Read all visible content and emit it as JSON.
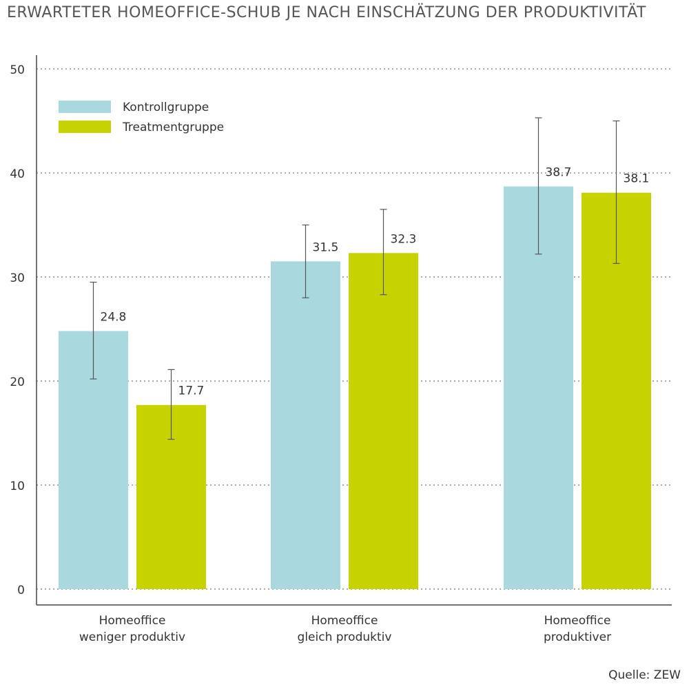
{
  "chart_data": {
    "type": "bar",
    "title": "ERWARTETER HOMEOFFICE-SCHUB JE NACH EINSCHÄTZUNG DER PRODUKTIVITÄT",
    "categories": [
      [
        "Homeoffice",
        "weniger produktiv"
      ],
      [
        "Homeoffice",
        "gleich produktiv"
      ],
      [
        "Homeoffice",
        "produktiver"
      ]
    ],
    "series": [
      {
        "name": "Kontrollgruppe",
        "color": "#a9d9de",
        "values": [
          24.8,
          31.5,
          38.7
        ],
        "labels": [
          "24.8",
          "31.5",
          "38.7"
        ],
        "error_low": [
          20.2,
          28.0,
          32.2
        ],
        "error_high": [
          29.5,
          35.0,
          45.3
        ]
      },
      {
        "name": "Treatmentgruppe",
        "color": "#c6d300",
        "values": [
          17.7,
          32.3,
          38.1
        ],
        "labels": [
          "17.7",
          "32.3",
          "38.1"
        ],
        "error_low": [
          14.4,
          28.3,
          31.3
        ],
        "error_high": [
          21.1,
          36.5,
          45.0
        ]
      }
    ],
    "ylim": [
      0,
      50
    ],
    "yticks": [
      "0",
      "10",
      "20",
      "30",
      "40",
      "50"
    ],
    "grid": true,
    "legend_position": "top-left",
    "source": "Quelle: ZEW"
  }
}
